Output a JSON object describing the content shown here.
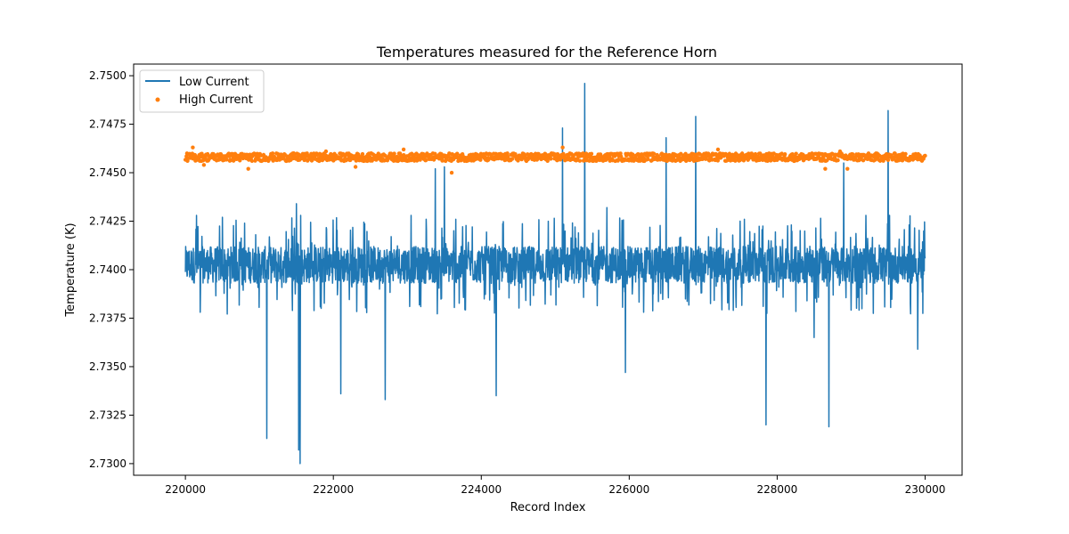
{
  "chart_data": {
    "type": "line",
    "title": "Temperatures measured for the Reference Horn",
    "xlabel": "Record Index",
    "ylabel": "Temperature (K)",
    "xlim": [
      219300,
      230500
    ],
    "ylim": [
      2.7294,
      2.7506
    ],
    "x_ticks": [
      220000,
      222000,
      224000,
      226000,
      228000,
      230000
    ],
    "x_tick_labels": [
      "220000",
      "222000",
      "224000",
      "226000",
      "228000",
      "230000"
    ],
    "y_ticks": [
      2.73,
      2.7325,
      2.735,
      2.7375,
      2.74,
      2.7425,
      2.745,
      2.7475,
      2.75
    ],
    "y_tick_labels": [
      "2.7300",
      "2.7325",
      "2.7350",
      "2.7375",
      "2.7400",
      "2.7425",
      "2.7450",
      "2.7475",
      "2.7500"
    ],
    "grid": false,
    "legend_position": "top-left",
    "series": [
      {
        "name": "Low Current",
        "type": "line",
        "color": "#1f77b4",
        "x_range": [
          220000,
          230000
        ],
        "baseline": 2.7403,
        "band_low": 2.7393,
        "band_high": 2.7412,
        "spikes": [
          {
            "x": 220150,
            "y": 2.7428
          },
          {
            "x": 220500,
            "y": 2.7427
          },
          {
            "x": 220800,
            "y": 2.7424
          },
          {
            "x": 221100,
            "y": 2.7313
          },
          {
            "x": 221500,
            "y": 2.7434
          },
          {
            "x": 221530,
            "y": 2.7307
          },
          {
            "x": 221550,
            "y": 2.73
          },
          {
            "x": 221560,
            "y": 2.7428
          },
          {
            "x": 222100,
            "y": 2.7336
          },
          {
            "x": 222700,
            "y": 2.7333
          },
          {
            "x": 223050,
            "y": 2.7428
          },
          {
            "x": 223380,
            "y": 2.7452
          },
          {
            "x": 223500,
            "y": 2.7453
          },
          {
            "x": 224200,
            "y": 2.7335
          },
          {
            "x": 225100,
            "y": 2.7473
          },
          {
            "x": 225400,
            "y": 2.7496
          },
          {
            "x": 225700,
            "y": 2.7432
          },
          {
            "x": 225950,
            "y": 2.7347
          },
          {
            "x": 226500,
            "y": 2.7468
          },
          {
            "x": 226900,
            "y": 2.7479
          },
          {
            "x": 227500,
            "y": 2.7425
          },
          {
            "x": 227850,
            "y": 2.732
          },
          {
            "x": 228700,
            "y": 2.7319
          },
          {
            "x": 228900,
            "y": 2.7455
          },
          {
            "x": 229500,
            "y": 2.7482
          },
          {
            "x": 229900,
            "y": 2.7359
          },
          {
            "x": 228500,
            "y": 2.7365
          },
          {
            "x": 229200,
            "y": 2.7428
          }
        ]
      },
      {
        "name": "High Current",
        "type": "scatter",
        "color": "#ff7f0e",
        "x_range": [
          220000,
          230000
        ],
        "baseline": 2.74578,
        "band_low": 2.7456,
        "band_high": 2.746,
        "outliers": [
          {
            "x": 220100,
            "y": 2.7463
          },
          {
            "x": 220250,
            "y": 2.7454
          },
          {
            "x": 220850,
            "y": 2.7452
          },
          {
            "x": 221900,
            "y": 2.7461
          },
          {
            "x": 222300,
            "y": 2.7453
          },
          {
            "x": 222950,
            "y": 2.7462
          },
          {
            "x": 223600,
            "y": 2.745
          },
          {
            "x": 225100,
            "y": 2.7463
          },
          {
            "x": 227200,
            "y": 2.7462
          },
          {
            "x": 228650,
            "y": 2.7452
          },
          {
            "x": 228850,
            "y": 2.7461
          },
          {
            "x": 228950,
            "y": 2.7452
          }
        ]
      }
    ]
  }
}
